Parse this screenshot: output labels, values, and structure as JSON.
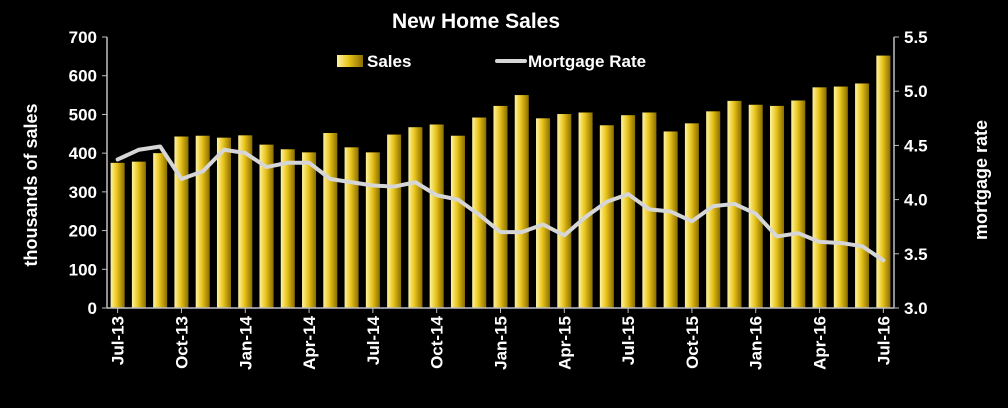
{
  "chart_data": {
    "type": "bar",
    "title": "New Home Sales",
    "ylabel": "thousands of sales",
    "y2label": "mortgage rate",
    "ylim": [
      0,
      700
    ],
    "y2lim": [
      3.0,
      5.5
    ],
    "yticks": [
      "0",
      "100",
      "200",
      "300",
      "400",
      "500",
      "600",
      "700"
    ],
    "y2ticks": [
      "3.0",
      "3.5",
      "4.0",
      "4.5",
      "5.0",
      "5.5"
    ],
    "grid": false,
    "legend_position": "top-center",
    "categories": [
      "Jul-13",
      "Aug-13",
      "Sep-13",
      "Oct-13",
      "Nov-13",
      "Dec-13",
      "Jan-14",
      "Feb-14",
      "Mar-14",
      "Apr-14",
      "May-14",
      "Jun-14",
      "Jul-14",
      "Aug-14",
      "Sep-14",
      "Oct-14",
      "Nov-14",
      "Dec-14",
      "Jan-15",
      "Feb-15",
      "Mar-15",
      "Apr-15",
      "May-15",
      "Jun-15",
      "Jul-15",
      "Aug-15",
      "Sep-15",
      "Oct-15",
      "Nov-15",
      "Dec-15",
      "Jan-16",
      "Feb-16",
      "Mar-16",
      "Apr-16",
      "May-16",
      "Jun-16",
      "Jul-16"
    ],
    "tick_labels": [
      "Jul-13",
      "Oct-13",
      "Jan-14",
      "Apr-14",
      "Jul-14",
      "Oct-14",
      "Jan-15",
      "Apr-15",
      "Jul-15",
      "Oct-15",
      "Jan-16",
      "Apr-16",
      "Jul-16"
    ],
    "series": [
      {
        "name": "Sales",
        "type": "bar",
        "axis": "left",
        "color": "#e8c41a",
        "values": [
          375,
          378,
          400,
          443,
          445,
          440,
          446,
          422,
          410,
          402,
          452,
          415,
          402,
          448,
          467,
          474,
          445,
          492,
          522,
          550,
          490,
          501,
          505,
          472,
          498,
          505,
          456,
          477,
          508,
          535,
          525,
          522,
          536,
          570,
          572,
          580,
          652
        ]
      },
      {
        "name": "Mortgage Rate",
        "type": "line",
        "axis": "right",
        "color": "#d6d6d6",
        "values": [
          4.37,
          4.46,
          4.49,
          4.19,
          4.26,
          4.46,
          4.43,
          4.3,
          4.34,
          4.34,
          4.19,
          4.16,
          4.13,
          4.12,
          4.16,
          4.04,
          4.0,
          3.86,
          3.7,
          3.7,
          3.77,
          3.67,
          3.84,
          3.98,
          4.05,
          3.91,
          3.89,
          3.8,
          3.94,
          3.96,
          3.87,
          3.66,
          3.69,
          3.61,
          3.6,
          3.57,
          3.44
        ]
      }
    ]
  },
  "colors": {
    "background": "#000000",
    "text": "#ffffff",
    "axis_line": "#bfbfbf",
    "bar_light": "#fff3a0",
    "bar_main": "#e8c41a",
    "bar_dark": "#8a6d00",
    "line": "#d6d6d6"
  }
}
